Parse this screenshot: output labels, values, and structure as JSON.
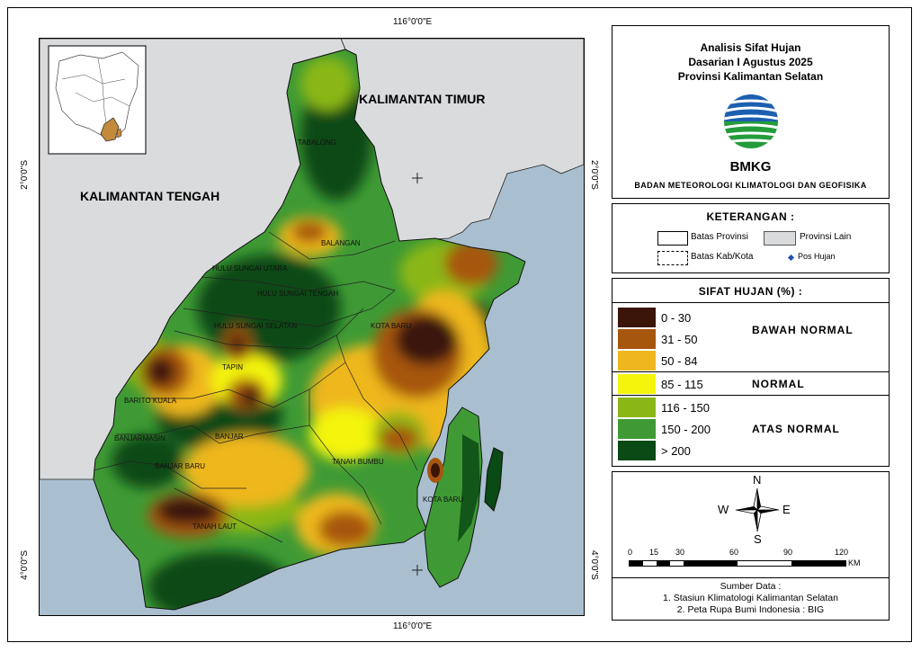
{
  "map": {
    "coords": {
      "top_lon": "116°0'0\"E",
      "bottom_lon": "116°0'0\"E",
      "lat_2": "2°0'0\"S",
      "lat_4": "4°0'0\"S"
    },
    "region_labels": {
      "kaltim": "KALIMANTAN TIMUR",
      "kalteng": "KALIMANTAN TENGAH"
    },
    "district_labels": [
      "TABALONG",
      "BALANGAN",
      "HULU SUNGAI UTARA",
      "HULU SUNGAI TENGAH",
      "HULU SUNGAI SELATAN",
      "KOTA BARU",
      "TAPIN",
      "BARITO KUALA",
      "BANJARMASIN",
      "BANJAR",
      "BANJAR BARU",
      "TANAH BUMBU",
      "KOTA BARU",
      "TANAH LAUT"
    ],
    "colors": {
      "sea": "#a9bfcf",
      "other_province": "#d9dbdd"
    }
  },
  "title": {
    "line1": "Analisis Sifat Hujan",
    "line2": "Dasarian I Agustus 2025",
    "line3": "Provinsi Kalimantan Selatan",
    "logo_text": "BMKG",
    "agency": "BADAN METEOROLOGI KLIMATOLOGI DAN GEOFISIKA"
  },
  "keterangan": {
    "header": "KETERANGAN :",
    "items": [
      "Batas Provinsi",
      "Provinsi Lain",
      "Batas Kab/Kota",
      "Pos Hujan"
    ]
  },
  "legend": {
    "header": "SIFAT HUJAN (%) :",
    "classes": [
      {
        "range": "0 - 30",
        "color": "#3b1508"
      },
      {
        "range": "31 - 50",
        "color": "#a7560e"
      },
      {
        "range": "50 - 84",
        "color": "#eeb71f"
      },
      {
        "range": "85 - 115",
        "color": "#f4f40c"
      },
      {
        "range": "116 - 150",
        "color": "#8ab716"
      },
      {
        "range": "150 - 200",
        "color": "#3f9a35"
      },
      {
        "range": "> 200",
        "color": "#0a4a14"
      }
    ],
    "categories": {
      "below": "BAWAH NORMAL",
      "normal": "NORMAL",
      "above": "ATAS NORMAL"
    }
  },
  "compass": {
    "n": "N",
    "s": "S",
    "e": "E",
    "w": "W"
  },
  "scale": {
    "ticks": [
      "0",
      "15",
      "30",
      "60",
      "90",
      "120"
    ],
    "unit": "KM"
  },
  "source": {
    "header": "Sumber Data :",
    "line1": "1. Stasiun Klimatologi Kalimantan Selatan",
    "line2": "2. Peta Rupa Bumi Indonesia : BIG"
  }
}
